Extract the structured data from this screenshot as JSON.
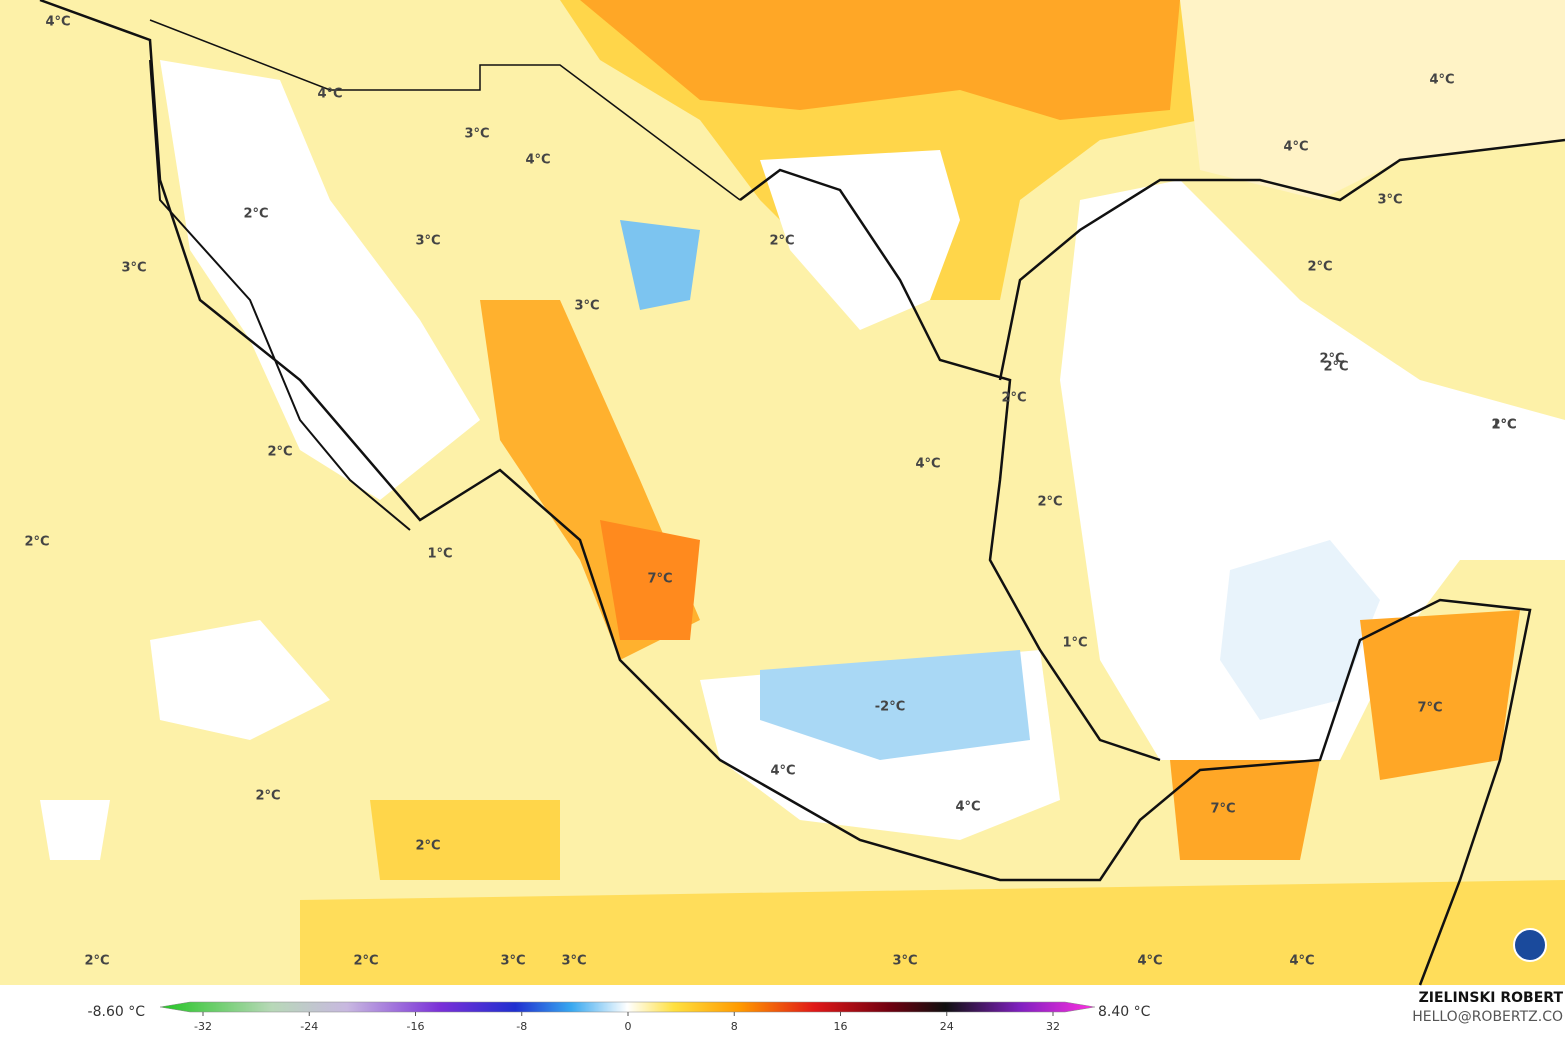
{
  "map": {
    "contour_labels": [
      "4°C",
      "4°C",
      "3°C",
      "4°C",
      "2°C",
      "3°C",
      "3°C",
      "3°C",
      "2°C",
      "2°C",
      "2°C",
      "1°C",
      "2°C",
      "7°C",
      "2°C",
      "2°C",
      "4°C",
      "2°C",
      "2°C",
      "1°C",
      "2°C",
      "-2°C",
      "4°C",
      "4°C",
      "2°C",
      "2°C",
      "4°C",
      "7°C",
      "7°C",
      "2°C",
      "2°C",
      "3°C",
      "3°C",
      "3°C",
      "4°C",
      "1°C",
      "4°C",
      "4°C",
      "3°C"
    ]
  },
  "legend": {
    "min_label": "-8.60 °C",
    "max_label": "8.40 °C",
    "ticks": [
      -32,
      -24,
      -16,
      -8,
      0,
      8,
      16,
      24,
      32
    ]
  },
  "credits": {
    "author": "ZIELINSKI ROBERT",
    "email": "HELLO@ROBERTZ.CO"
  }
}
